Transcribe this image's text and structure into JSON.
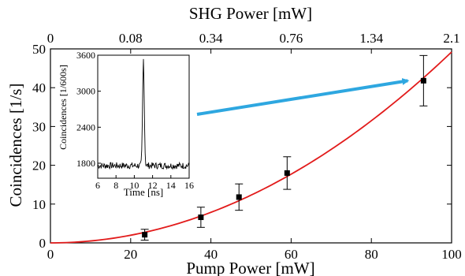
{
  "chart_data": [
    {
      "type": "scatter",
      "xlabel": "Pump Power [mW]",
      "ylabel": "Coincidences [1/s]",
      "top_axis_label": "SHG Power [mW]",
      "xlim": [
        0,
        100
      ],
      "ylim": [
        0,
        50
      ],
      "xticks": [
        0,
        20,
        40,
        60,
        80,
        100
      ],
      "yticks": [
        0,
        10,
        20,
        30,
        40,
        50
      ],
      "top_ticks": [
        {
          "pump": 0,
          "label": "0"
        },
        {
          "pump": 20,
          "label": "0.08"
        },
        {
          "pump": 40,
          "label": "0.34"
        },
        {
          "pump": 60,
          "label": "0.76"
        },
        {
          "pump": 80,
          "label": "1.34"
        },
        {
          "pump": 100,
          "label": "2.1"
        }
      ],
      "series": [
        {
          "type": "scatter",
          "points": [
            {
              "x": 23.5,
              "y": 2.1,
              "err": 1.4
            },
            {
              "x": 37.5,
              "y": 6.6,
              "err": 2.6
            },
            {
              "x": 47.0,
              "y": 11.8,
              "err": 3.4
            },
            {
              "x": 59.0,
              "y": 18.0,
              "err": 4.2
            },
            {
              "x": 93.0,
              "y": 41.8,
              "err": 6.5
            }
          ],
          "color": "#000000"
        },
        {
          "type": "line",
          "fit": "quadratic",
          "coefficient": 0.00492,
          "color": "#e21b1b"
        }
      ],
      "annotation_arrow": {
        "color": "#2ea7e0"
      }
    },
    {
      "type": "line",
      "xlabel": "Time [ns]",
      "ylabel": "Coincidences [1/600s]",
      "xlim": [
        6,
        16
      ],
      "ylim": [
        1550,
        3600
      ],
      "xticks": [
        6,
        8,
        10,
        12,
        14,
        16
      ],
      "yticks": [
        1800,
        2400,
        3000,
        3600
      ],
      "color": "#000000",
      "peak": {
        "x": 11.0,
        "y": 3530
      },
      "baseline": 1760
    }
  ]
}
